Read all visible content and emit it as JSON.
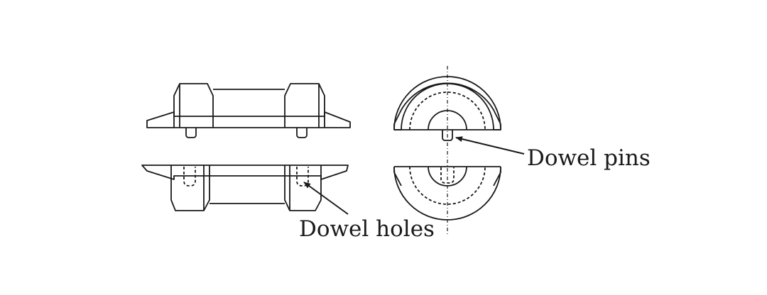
{
  "labels": {
    "dowel_pins": "Dowel pins",
    "dowel_holes": "Dowel holes"
  },
  "colors": {
    "line": "#1a1a1a",
    "background": "#ffffff"
  }
}
